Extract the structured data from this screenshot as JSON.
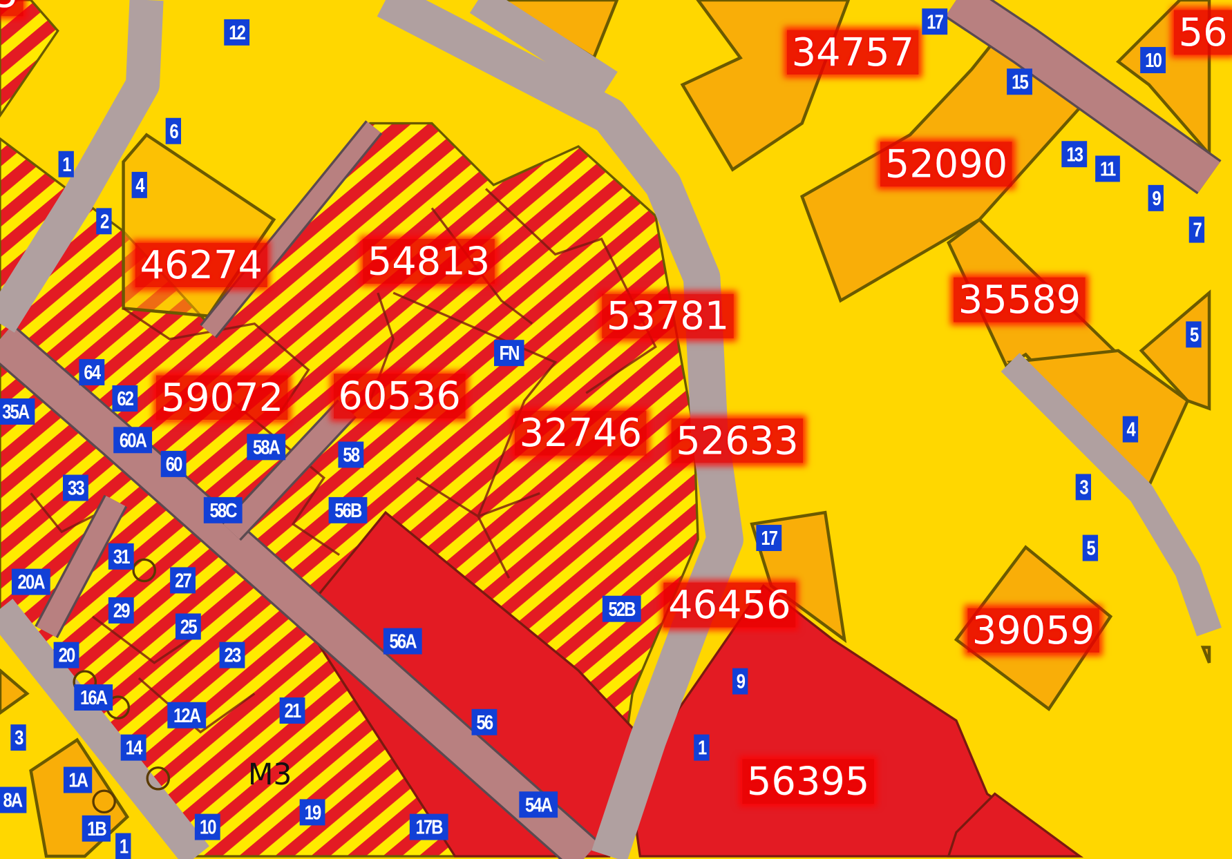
{
  "map": {
    "colors": {
      "background_zone": "#FFD700",
      "parcel_orange": "#F9AE08",
      "dense_zone_red": "#E31B23",
      "hatch_yellow": "#FFEA00",
      "road_gray": "#B0A0A0",
      "road_pink": "#B88080",
      "parcel_outline": "#6B5A00",
      "house_number_bg": "#1240D6"
    },
    "parcel_numbers": [
      "5",
      "34757",
      "56",
      "52090",
      "46274",
      "54813",
      "53781",
      "35589",
      "59072",
      "60536",
      "32746",
      "52633",
      "46456",
      "39059",
      "56395"
    ],
    "house_numbers": [
      "12",
      "17",
      "10",
      "15",
      "6",
      "1",
      "4",
      "13",
      "11",
      "9",
      "7",
      "2",
      "5",
      "FN",
      "64",
      "62",
      "35A",
      "60A",
      "60",
      "58A",
      "58",
      "4",
      "33",
      "58C",
      "56B",
      "3",
      "17",
      "5",
      "31",
      "20A",
      "27",
      "29",
      "52B",
      "25",
      "56A",
      "23",
      "20",
      "9",
      "16A",
      "12A",
      "21",
      "56",
      "3",
      "14",
      "1",
      "1A",
      "8A",
      "54A",
      "19",
      "1B",
      "10",
      "17B",
      "1"
    ],
    "zone_label": "M3"
  }
}
